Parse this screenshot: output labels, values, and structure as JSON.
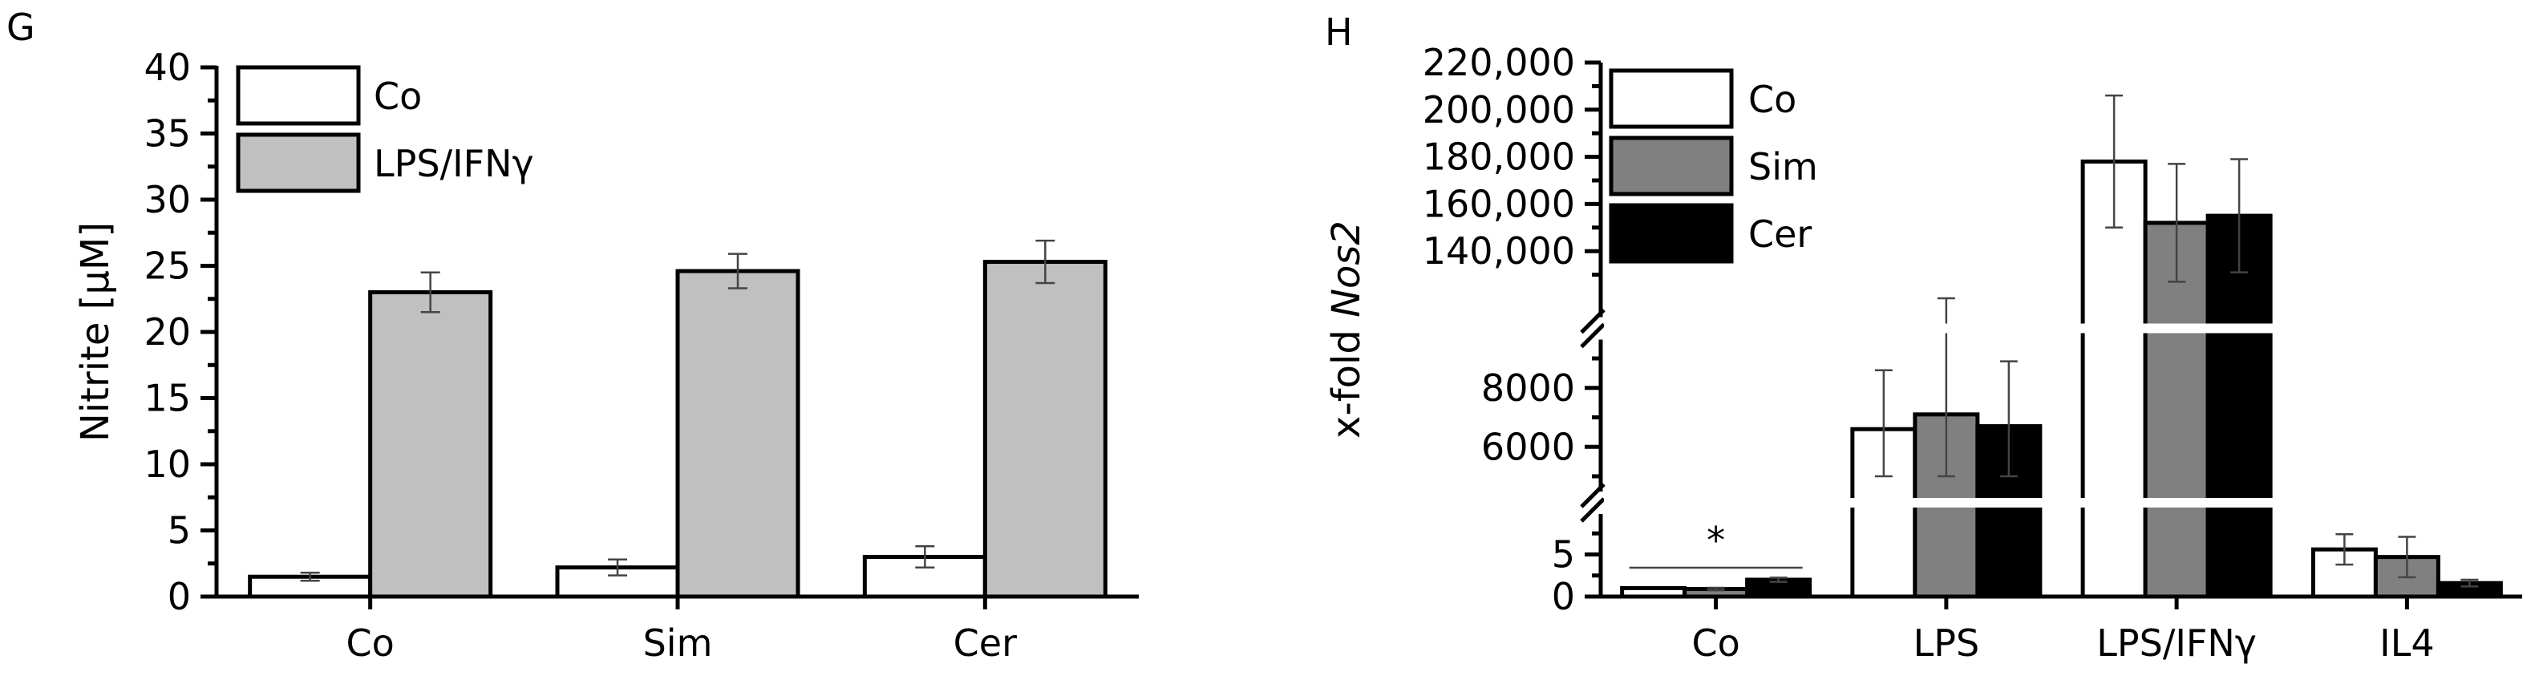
{
  "chart_data": [
    {
      "panel": "G",
      "type": "bar",
      "ylabel": "Nitrite [µM]",
      "xlabel": "",
      "ylim": [
        0,
        40
      ],
      "yticks": [
        0,
        5,
        10,
        15,
        20,
        25,
        30,
        35,
        40
      ],
      "categories": [
        "Co",
        "Sim",
        "Cer"
      ],
      "series": [
        {
          "name": "Co",
          "color": "#ffffff",
          "values": [
            1.5,
            2.2,
            3.0
          ],
          "errors": [
            0.3,
            0.6,
            0.8
          ]
        },
        {
          "name": "LPS/IFNγ",
          "color": "#c0c0c0",
          "values": [
            23.0,
            24.6,
            25.3
          ],
          "errors": [
            1.5,
            1.3,
            1.6
          ]
        }
      ],
      "legend": "top-left",
      "grid": false
    },
    {
      "panel": "H",
      "type": "bar",
      "ylabel_prefix": "x-fold ",
      "ylabel_italic": "Nos2",
      "xlabel": "",
      "broken_axis": true,
      "segments": [
        {
          "range": [
            0,
            8
          ],
          "ticks": [
            0,
            5
          ],
          "tick_labels": [
            "0",
            "5"
          ]
        },
        {
          "range": [
            5000,
            9000
          ],
          "ticks": [
            6000,
            8000
          ],
          "tick_labels": [
            "6000",
            "8000"
          ]
        },
        {
          "range": [
            120000,
            220000
          ],
          "ticks": [
            140000,
            160000,
            180000,
            200000,
            220000
          ],
          "tick_labels": [
            "140,000",
            "160,000",
            "180,000",
            "200,000",
            "220,000"
          ]
        }
      ],
      "categories": [
        "Co",
        "LPS",
        "LPS/IFNγ",
        "IL4"
      ],
      "series": [
        {
          "name": "Co",
          "color": "#ffffff",
          "values": [
            1,
            6600,
            178000,
            5.6
          ],
          "errors": [
            0,
            2000,
            28000,
            1.8
          ]
        },
        {
          "name": "Sim",
          "color": "#808080",
          "values": [
            0.9,
            7100,
            152000,
            4.7
          ],
          "errors": [
            0.15,
            2300,
            25000,
            2.4
          ]
        },
        {
          "name": "Cer",
          "color": "#000000",
          "values": [
            2.0,
            6700,
            155000,
            1.6
          ],
          "errors": [
            0.25,
            2200,
            24000,
            0.4
          ]
        }
      ],
      "annotation": {
        "text": "*"
      },
      "legend": "top-left",
      "grid": false
    }
  ]
}
